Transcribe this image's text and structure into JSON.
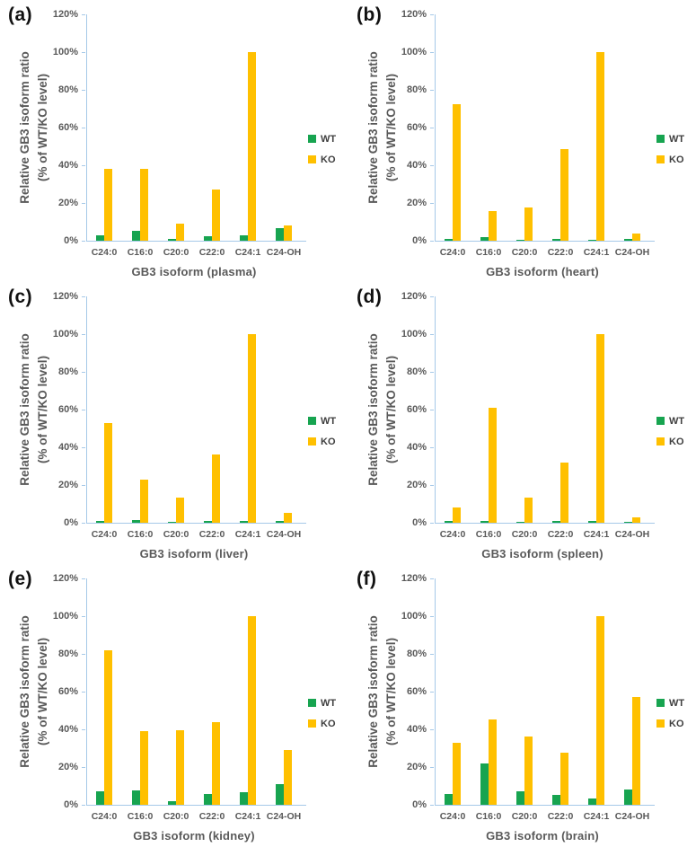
{
  "figure": {
    "y_axis_title_lines": [
      "Relative GB3 isoform ratio",
      "(% of WT/KO level)"
    ],
    "legend": {
      "wt_label": "WT",
      "ko_label": "KO"
    },
    "colors": {
      "wt": "#17A450",
      "ko": "#FFC000",
      "axis_line": "#A6C9E8",
      "tick_text": "#595959",
      "panel_label_text": "#111111"
    }
  },
  "chart_data": [
    {
      "type": "bar",
      "panel_label": "(a)",
      "tissue": "plasma",
      "title": "",
      "xlabel": "GB3 isoform (plasma)",
      "ylabel": "Relative GB3 isoform ratio (% of WT/KO level)",
      "categories": [
        "C24:0",
        "C16:0",
        "C20:0",
        "C22:0",
        "C24:1",
        "C24-OH"
      ],
      "series": [
        {
          "name": "WT",
          "values": [
            3,
            5,
            1,
            2.5,
            3,
            6.5
          ]
        },
        {
          "name": "KO",
          "values": [
            38,
            38,
            9,
            27,
            100,
            8
          ]
        }
      ],
      "ylim": [
        0,
        120
      ],
      "yticks_percent": [
        0,
        20,
        40,
        60,
        80,
        100,
        120
      ],
      "legend_position": "right",
      "grid": false
    },
    {
      "type": "bar",
      "panel_label": "(b)",
      "tissue": "heart",
      "title": "",
      "xlabel": "GB3 isoform (heart)",
      "ylabel": "Relative GB3 isoform ratio (% of WT/KO level)",
      "categories": [
        "C24:0",
        "C16:0",
        "C20:0",
        "C22:0",
        "C24:1",
        "C24-OH"
      ],
      "series": [
        {
          "name": "WT",
          "values": [
            1,
            2,
            0.5,
            1,
            0.5,
            1
          ]
        },
        {
          "name": "KO",
          "values": [
            72.5,
            15.5,
            17.5,
            48.5,
            100,
            4
          ]
        }
      ],
      "ylim": [
        0,
        120
      ],
      "yticks_percent": [
        0,
        20,
        40,
        60,
        80,
        100,
        120
      ],
      "legend_position": "right",
      "grid": false
    },
    {
      "type": "bar",
      "panel_label": "(c)",
      "tissue": "liver",
      "title": "",
      "xlabel": "GB3 isoform (liver)",
      "ylabel": "Relative GB3 isoform ratio (% of WT/KO level)",
      "categories": [
        "C24:0",
        "C16:0",
        "C20:0",
        "C22:0",
        "C24:1",
        "C24-OH"
      ],
      "series": [
        {
          "name": "WT",
          "values": [
            1,
            1.5,
            0.3,
            0.8,
            0.8,
            1
          ]
        },
        {
          "name": "KO",
          "values": [
            53,
            23,
            13.5,
            36,
            100,
            5
          ]
        }
      ],
      "ylim": [
        0,
        120
      ],
      "yticks_percent": [
        0,
        20,
        40,
        60,
        80,
        100,
        120
      ],
      "legend_position": "right",
      "grid": false
    },
    {
      "type": "bar",
      "panel_label": "(d)",
      "tissue": "spleen",
      "title": "",
      "xlabel": "GB3 isoform (spleen)",
      "ylabel": "Relative GB3 isoform ratio (% of WT/KO level)",
      "categories": [
        "C24:0",
        "C16:0",
        "C20:0",
        "C22:0",
        "C24:1",
        "C24-OH"
      ],
      "series": [
        {
          "name": "WT",
          "values": [
            1,
            1,
            0.5,
            1,
            1,
            0.5
          ]
        },
        {
          "name": "KO",
          "values": [
            8,
            61,
            13.5,
            32,
            100,
            3
          ]
        }
      ],
      "ylim": [
        0,
        120
      ],
      "yticks_percent": [
        0,
        20,
        40,
        60,
        80,
        100,
        120
      ],
      "legend_position": "right",
      "grid": false
    },
    {
      "type": "bar",
      "panel_label": "(e)",
      "tissue": "kidney",
      "title": "",
      "xlabel": "GB3 isoform (kidney)",
      "ylabel": "Relative GB3 isoform ratio (% of WT/KO level)",
      "categories": [
        "C24:0",
        "C16:0",
        "C20:0",
        "C22:0",
        "C24:1",
        "C24-OH"
      ],
      "series": [
        {
          "name": "WT",
          "values": [
            7,
            7.5,
            2,
            5.5,
            6.5,
            11
          ]
        },
        {
          "name": "KO",
          "values": [
            82,
            39,
            39.5,
            44,
            100,
            29
          ]
        }
      ],
      "ylim": [
        0,
        120
      ],
      "yticks_percent": [
        0,
        20,
        40,
        60,
        80,
        100,
        120
      ],
      "legend_position": "right",
      "grid": false
    },
    {
      "type": "bar",
      "panel_label": "(f)",
      "tissue": "brain",
      "title": "",
      "xlabel": "GB3 isoform (brain)",
      "ylabel": "Relative GB3 isoform ratio (% of WT/KO level)",
      "categories": [
        "C24:0",
        "C16:0",
        "C20:0",
        "C22:0",
        "C24:1",
        "C24-OH"
      ],
      "series": [
        {
          "name": "WT",
          "values": [
            5.5,
            22,
            7,
            5,
            3.5,
            8
          ]
        },
        {
          "name": "KO",
          "values": [
            33,
            45,
            36,
            27.5,
            100,
            57
          ]
        }
      ],
      "ylim": [
        0,
        120
      ],
      "yticks_percent": [
        0,
        20,
        40,
        60,
        80,
        100,
        120
      ],
      "legend_position": "right",
      "grid": false
    }
  ]
}
